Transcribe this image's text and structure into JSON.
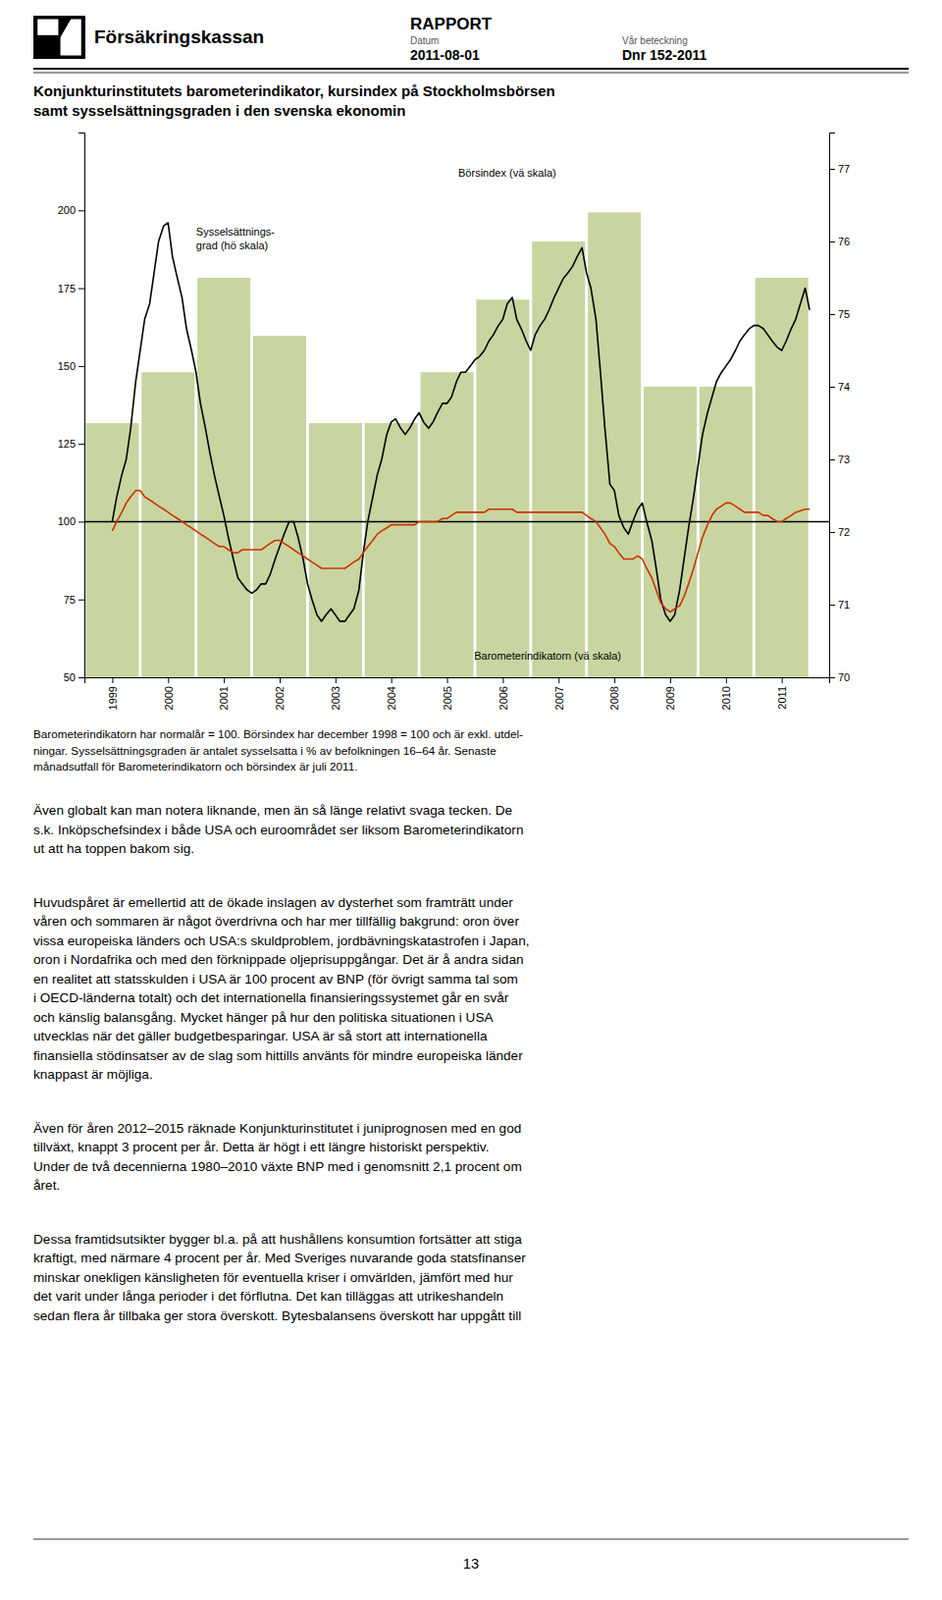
{
  "header": {
    "organization": "Försäkringskassan",
    "page_title": "RAPPORT",
    "date_label": "Datum",
    "date_value": "2011-08-01",
    "ref_label": "Vår beteckning",
    "ref_value": "Dnr 152-2011"
  },
  "chart_data": {
    "type": "bar",
    "title": "Konjunkturinstitutets barometerindikator, kursindex på Stockholmsbörsen\nsamt sysselsättningsgraden i den svenska ekonomin",
    "xlim": [
      1998.5,
      2011.85
    ],
    "xticks": [
      1999,
      2000,
      2001,
      2002,
      2003,
      2004,
      2005,
      2006,
      2007,
      2008,
      2009,
      2010,
      2011
    ],
    "ylim": [
      50,
      225
    ],
    "yticks": [
      50,
      75,
      100,
      125,
      150,
      175,
      200
    ],
    "y2lim": [
      70.0,
      77.5
    ],
    "y2ticks": [
      70,
      71,
      72,
      73,
      74,
      75,
      76,
      77
    ],
    "grid": false,
    "reference_line": {
      "value": 100,
      "color": "#000000"
    },
    "annotations": [
      "Börsindex (vä skala)",
      "Sysselsättnings-\ngrad (hö skala)",
      "Barometerindikatorn (vä skala)"
    ],
    "series": [
      {
        "type": "bar",
        "axis": "y2",
        "color": "#c8d5a0",
        "x": [
          1999,
          2000,
          2001,
          2002,
          2003,
          2004,
          2005,
          2006,
          2007,
          2008,
          2009,
          2010,
          2011
        ],
        "values": [
          73.5,
          74.2,
          75.5,
          74.7,
          73.5,
          73.5,
          74.2,
          75.2,
          76.0,
          76.4,
          74.0,
          74.0,
          75.5
        ]
      },
      {
        "type": "line",
        "color": "#000000",
        "x": [
          1999.0,
          1999.08,
          1999.17,
          1999.25,
          1999.33,
          1999.42,
          1999.5,
          1999.58,
          1999.67,
          1999.75,
          1999.83,
          1999.92,
          2000.0,
          2000.08,
          2000.17,
          2000.25,
          2000.33,
          2000.42,
          2000.5,
          2000.58,
          2000.67,
          2000.75,
          2000.83,
          2000.92,
          2001.0,
          2001.08,
          2001.17,
          2001.25,
          2001.33,
          2001.42,
          2001.5,
          2001.58,
          2001.67,
          2001.75,
          2001.83,
          2001.92,
          2002.0,
          2002.08,
          2002.17,
          2002.25,
          2002.33,
          2002.42,
          2002.5,
          2002.58,
          2002.67,
          2002.75,
          2002.83,
          2002.92,
          2003.0,
          2003.08,
          2003.17,
          2003.25,
          2003.33,
          2003.42,
          2003.5,
          2003.58,
          2003.67,
          2003.75,
          2003.83,
          2003.92,
          2004.0,
          2004.08,
          2004.17,
          2004.25,
          2004.33,
          2004.42,
          2004.5,
          2004.58,
          2004.67,
          2004.75,
          2004.83,
          2004.92,
          2005.0,
          2005.08,
          2005.17,
          2005.25,
          2005.33,
          2005.42,
          2005.5,
          2005.58,
          2005.67,
          2005.75,
          2005.83,
          2005.92,
          2006.0,
          2006.08,
          2006.17,
          2006.25,
          2006.33,
          2006.42,
          2006.5,
          2006.58,
          2006.67,
          2006.75,
          2006.83,
          2006.92,
          2007.0,
          2007.08,
          2007.17,
          2007.25,
          2007.33,
          2007.42,
          2007.5,
          2007.58,
          2007.67,
          2007.75,
          2007.83,
          2007.92,
          2008.0,
          2008.08,
          2008.17,
          2008.25,
          2008.33,
          2008.42,
          2008.5,
          2008.58,
          2008.67,
          2008.75,
          2008.83,
          2008.92,
          2009.0,
          2009.08,
          2009.17,
          2009.25,
          2009.33,
          2009.42,
          2009.5,
          2009.58,
          2009.67,
          2009.75,
          2009.83,
          2009.92,
          2010.0,
          2010.08,
          2010.17,
          2010.25,
          2010.33,
          2010.42,
          2010.5,
          2010.58,
          2010.67,
          2010.75,
          2010.83,
          2010.92,
          2011.0,
          2011.08,
          2011.17,
          2011.25,
          2011.42,
          2011.5
        ],
        "values": [
          100,
          108,
          115,
          120,
          130,
          145,
          155,
          165,
          170,
          180,
          190,
          195,
          196,
          185,
          178,
          172,
          162,
          155,
          148,
          138,
          130,
          122,
          115,
          108,
          102,
          95,
          88,
          82,
          80,
          78,
          77,
          78,
          80,
          80,
          83,
          88,
          92,
          96,
          100,
          100,
          95,
          88,
          80,
          75,
          70,
          68,
          70,
          72,
          70,
          68,
          68,
          70,
          72,
          78,
          90,
          100,
          108,
          115,
          120,
          128,
          132,
          133,
          130,
          128,
          130,
          133,
          135,
          132,
          130,
          132,
          135,
          138,
          138,
          140,
          145,
          148,
          148,
          150,
          152,
          153,
          155,
          158,
          160,
          163,
          165,
          170,
          172,
          165,
          162,
          158,
          155,
          160,
          163,
          165,
          168,
          172,
          175,
          178,
          180,
          182,
          185,
          188,
          180,
          175,
          165,
          148,
          130,
          112,
          110,
          102,
          98,
          96,
          100,
          104,
          106,
          100,
          94,
          85,
          75,
          70,
          68,
          70,
          78,
          88,
          98,
          108,
          118,
          128,
          135,
          140,
          145,
          148,
          150,
          152,
          155,
          158,
          160,
          162,
          163,
          163,
          162,
          160,
          158,
          156,
          155,
          158,
          162,
          165,
          175,
          168
        ]
      },
      {
        "type": "line",
        "color": "#cc3300",
        "x": [
          1999.0,
          1999.08,
          1999.17,
          1999.25,
          1999.33,
          1999.42,
          1999.5,
          1999.58,
          1999.67,
          1999.75,
          1999.83,
          1999.92,
          2000.0,
          2000.08,
          2000.17,
          2000.25,
          2000.33,
          2000.42,
          2000.5,
          2000.58,
          2000.67,
          2000.75,
          2000.83,
          2000.92,
          2001.0,
          2001.08,
          2001.17,
          2001.25,
          2001.33,
          2001.42,
          2001.5,
          2001.58,
          2001.67,
          2001.75,
          2001.83,
          2001.92,
          2002.0,
          2002.08,
          2002.17,
          2002.25,
          2002.33,
          2002.42,
          2002.5,
          2002.58,
          2002.67,
          2002.75,
          2002.83,
          2002.92,
          2003.0,
          2003.08,
          2003.17,
          2003.25,
          2003.33,
          2003.42,
          2003.5,
          2003.58,
          2003.67,
          2003.75,
          2003.83,
          2003.92,
          2004.0,
          2004.08,
          2004.17,
          2004.25,
          2004.33,
          2004.42,
          2004.5,
          2004.58,
          2004.67,
          2004.75,
          2004.83,
          2004.92,
          2005.0,
          2005.08,
          2005.17,
          2005.25,
          2005.33,
          2005.42,
          2005.5,
          2005.58,
          2005.67,
          2005.75,
          2005.83,
          2005.92,
          2006.0,
          2006.08,
          2006.17,
          2006.25,
          2006.33,
          2006.42,
          2006.5,
          2006.58,
          2006.67,
          2006.75,
          2006.83,
          2006.92,
          2007.0,
          2007.08,
          2007.17,
          2007.25,
          2007.33,
          2007.42,
          2007.5,
          2007.58,
          2007.67,
          2007.75,
          2007.83,
          2007.92,
          2008.0,
          2008.08,
          2008.17,
          2008.25,
          2008.33,
          2008.42,
          2008.5,
          2008.58,
          2008.67,
          2008.75,
          2008.83,
          2008.92,
          2009.0,
          2009.08,
          2009.17,
          2009.25,
          2009.33,
          2009.42,
          2009.5,
          2009.58,
          2009.67,
          2009.75,
          2009.83,
          2009.92,
          2010.0,
          2010.08,
          2010.17,
          2010.25,
          2010.33,
          2010.42,
          2010.5,
          2010.58,
          2010.67,
          2010.75,
          2010.83,
          2010.92,
          2011.0,
          2011.08,
          2011.17,
          2011.25,
          2011.42,
          2011.5
        ],
        "values": [
          97,
          100,
          103,
          106,
          108,
          110,
          110,
          108,
          107,
          106,
          105,
          104,
          103,
          102,
          101,
          100,
          99,
          98,
          97,
          96,
          95,
          94,
          93,
          92,
          92,
          91,
          90,
          90,
          91,
          91,
          91,
          91,
          91,
          92,
          93,
          94,
          94,
          93,
          92,
          91,
          90,
          89,
          88,
          87,
          86,
          85,
          85,
          85,
          85,
          85,
          85,
          86,
          87,
          88,
          90,
          92,
          94,
          96,
          97,
          98,
          99,
          99,
          99,
          99,
          99,
          99,
          100,
          100,
          100,
          100,
          100,
          101,
          101,
          102,
          103,
          103,
          103,
          103,
          103,
          103,
          103,
          104,
          104,
          104,
          104,
          104,
          104,
          103,
          103,
          103,
          103,
          103,
          103,
          103,
          103,
          103,
          103,
          103,
          103,
          103,
          103,
          103,
          102,
          101,
          100,
          98,
          96,
          93,
          92,
          90,
          88,
          88,
          88,
          89,
          88,
          85,
          82,
          78,
          74,
          72,
          71,
          72,
          73,
          76,
          80,
          85,
          90,
          95,
          99,
          102,
          104,
          105,
          106,
          106,
          105,
          104,
          103,
          103,
          103,
          103,
          102,
          102,
          101,
          100,
          100,
          101,
          102,
          103,
          104,
          104
        ]
      }
    ]
  },
  "footnote": [
    "Barometerindikatorn har normalår = 100. Börsindex har december 1998 = 100 och är exkl. utdel-",
    "ningar. Sysselsättningsgraden är antalet sysselsatta i % av befolkningen 16–64 år. Senaste",
    "månadsutfall för Barometerindikatorn och börsindex är juli 2011."
  ],
  "paragraphs": [
    [
      "Även globalt kan man notera liknande, men än så länge relativt svaga tecken. De",
      "s.k. Inköpschefsindex i både USA och euroområdet ser liksom Barometerindikatorn",
      "ut att ha toppen bakom sig."
    ],
    [
      "Huvudspåret är emellertid att de ökade inslagen av dysterhet som framträtt under",
      "våren och sommaren är något överdrivna och har mer tillfällig bakgrund: oron över",
      "vissa europeiska länders och USA:s skuldproblem, jordbävningskatastrofen i Japan,",
      "oron i Nordafrika och med den förknippade oljeprisuppgångar. Det är å andra sidan",
      "en realitet att statsskulden i USA är 100 procent av BNP (för övrigt samma tal som",
      "i OECD-länderna totalt) och det internationella finansieringssystemet går en svår",
      "och känslig balansgång. Mycket hänger på hur den politiska situationen i USA",
      "utvecklas när det gäller budgetbesparingar. USA är så stort att internationella",
      "finansiella stödinsatser av de slag som hittills använts för mindre europeiska länder",
      "knappast är möjliga."
    ],
    [
      "Även för åren 2012–2015 räknade Konjunkturinstitutet i juniprognosen med en god",
      "tillväxt, knappt 3 procent per år. Detta är högt i ett längre historiskt perspektiv.",
      "Under de två decennierna 1980–2010 växte BNP med i genomsnitt 2,1 procent om",
      "året."
    ],
    [
      "Dessa framtidsutsikter bygger bl.a. på att hushållens konsumtion fortsätter att stiga",
      "kraftigt, med närmare 4 procent per år. Med Sveriges nuvarande goda statsfinanser",
      "minskar onekligen känsligheten för eventuella kriser i omvärlden, jämfört med hur",
      "det varit under långa perioder i det förflutna. Det kan tilläggas att utrikeshandeln",
      "sedan flera år tillbaka ger stora överskott. Bytesbalansens överskott har uppgått till"
    ]
  ],
  "page_number": "13"
}
